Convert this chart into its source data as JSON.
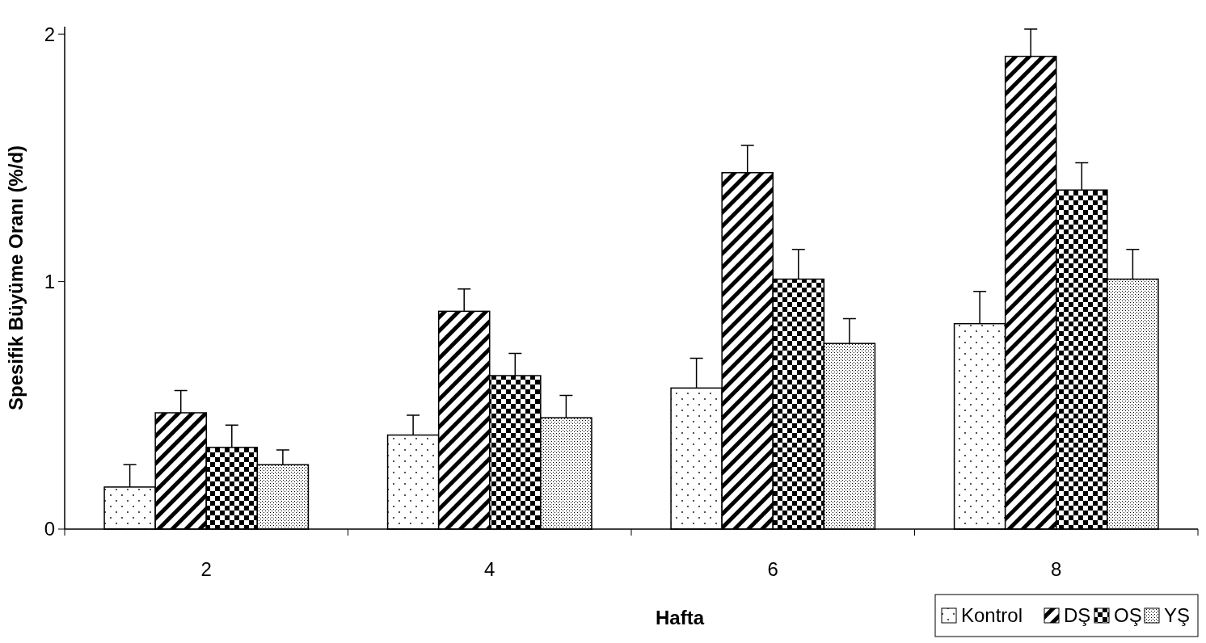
{
  "chart_data": {
    "type": "bar",
    "xlabel": "Hafta",
    "ylabel": "Spesifik Büyüme Oranı (%/d)",
    "categories": [
      "2",
      "4",
      "6",
      "8"
    ],
    "ylim": [
      0,
      2.03
    ],
    "yticks": [
      0,
      1,
      2
    ],
    "grid": false,
    "legend": "bottom right",
    "series": [
      {
        "name": "Kontrol",
        "color": "#000000",
        "values": [
          0.17,
          0.38,
          0.57,
          0.83
        ],
        "errors": [
          [
            0.17,
            0.26
          ],
          [
            0.38,
            0.46
          ],
          [
            0.57,
            0.69
          ],
          [
            0.83,
            0.96
          ]
        ]
      },
      {
        "name": "DŞ",
        "color": "#000000",
        "values": [
          0.47,
          0.88,
          1.44,
          1.91
        ],
        "errors": [
          [
            0.47,
            0.56
          ],
          [
            0.88,
            0.97
          ],
          [
            1.44,
            1.55
          ],
          [
            1.91,
            2.02
          ]
        ]
      },
      {
        "name": "OŞ",
        "color": "#000000",
        "values": [
          0.33,
          0.62,
          1.01,
          1.37
        ],
        "errors": [
          [
            0.33,
            0.42
          ],
          [
            0.62,
            0.71
          ],
          [
            1.01,
            1.13
          ],
          [
            1.37,
            1.48
          ]
        ]
      },
      {
        "name": "YŞ",
        "color": "#000000",
        "values": [
          0.26,
          0.45,
          0.75,
          1.01
        ],
        "errors": [
          [
            0.26,
            0.32
          ],
          [
            0.45,
            0.54
          ],
          [
            0.75,
            0.85
          ],
          [
            1.01,
            1.13
          ]
        ]
      }
    ]
  }
}
